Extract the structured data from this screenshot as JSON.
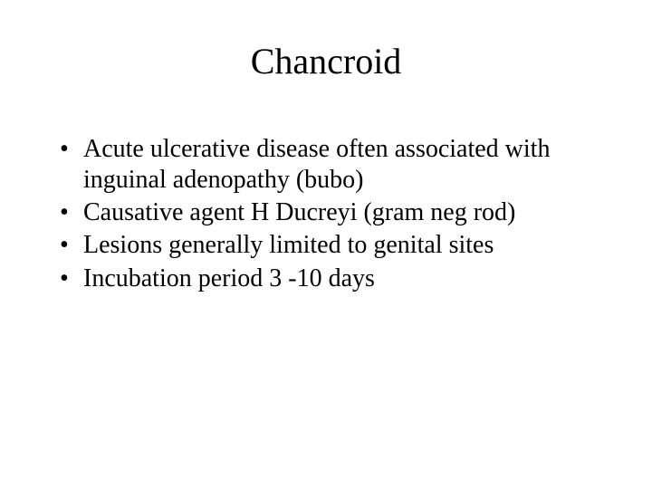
{
  "slide": {
    "title": "Chancroid",
    "title_fontsize": 40,
    "title_color": "#000000",
    "body_fontsize": 28,
    "body_color": "#000000",
    "background_color": "#ffffff",
    "font_family": "Times New Roman",
    "bullets": [
      "Acute ulcerative disease often associated with inguinal adenopathy (bubo)",
      "Causative agent H Ducreyi  (gram neg rod)",
      "Lesions generally limited to genital sites",
      "Incubation period 3 -10 days"
    ]
  }
}
